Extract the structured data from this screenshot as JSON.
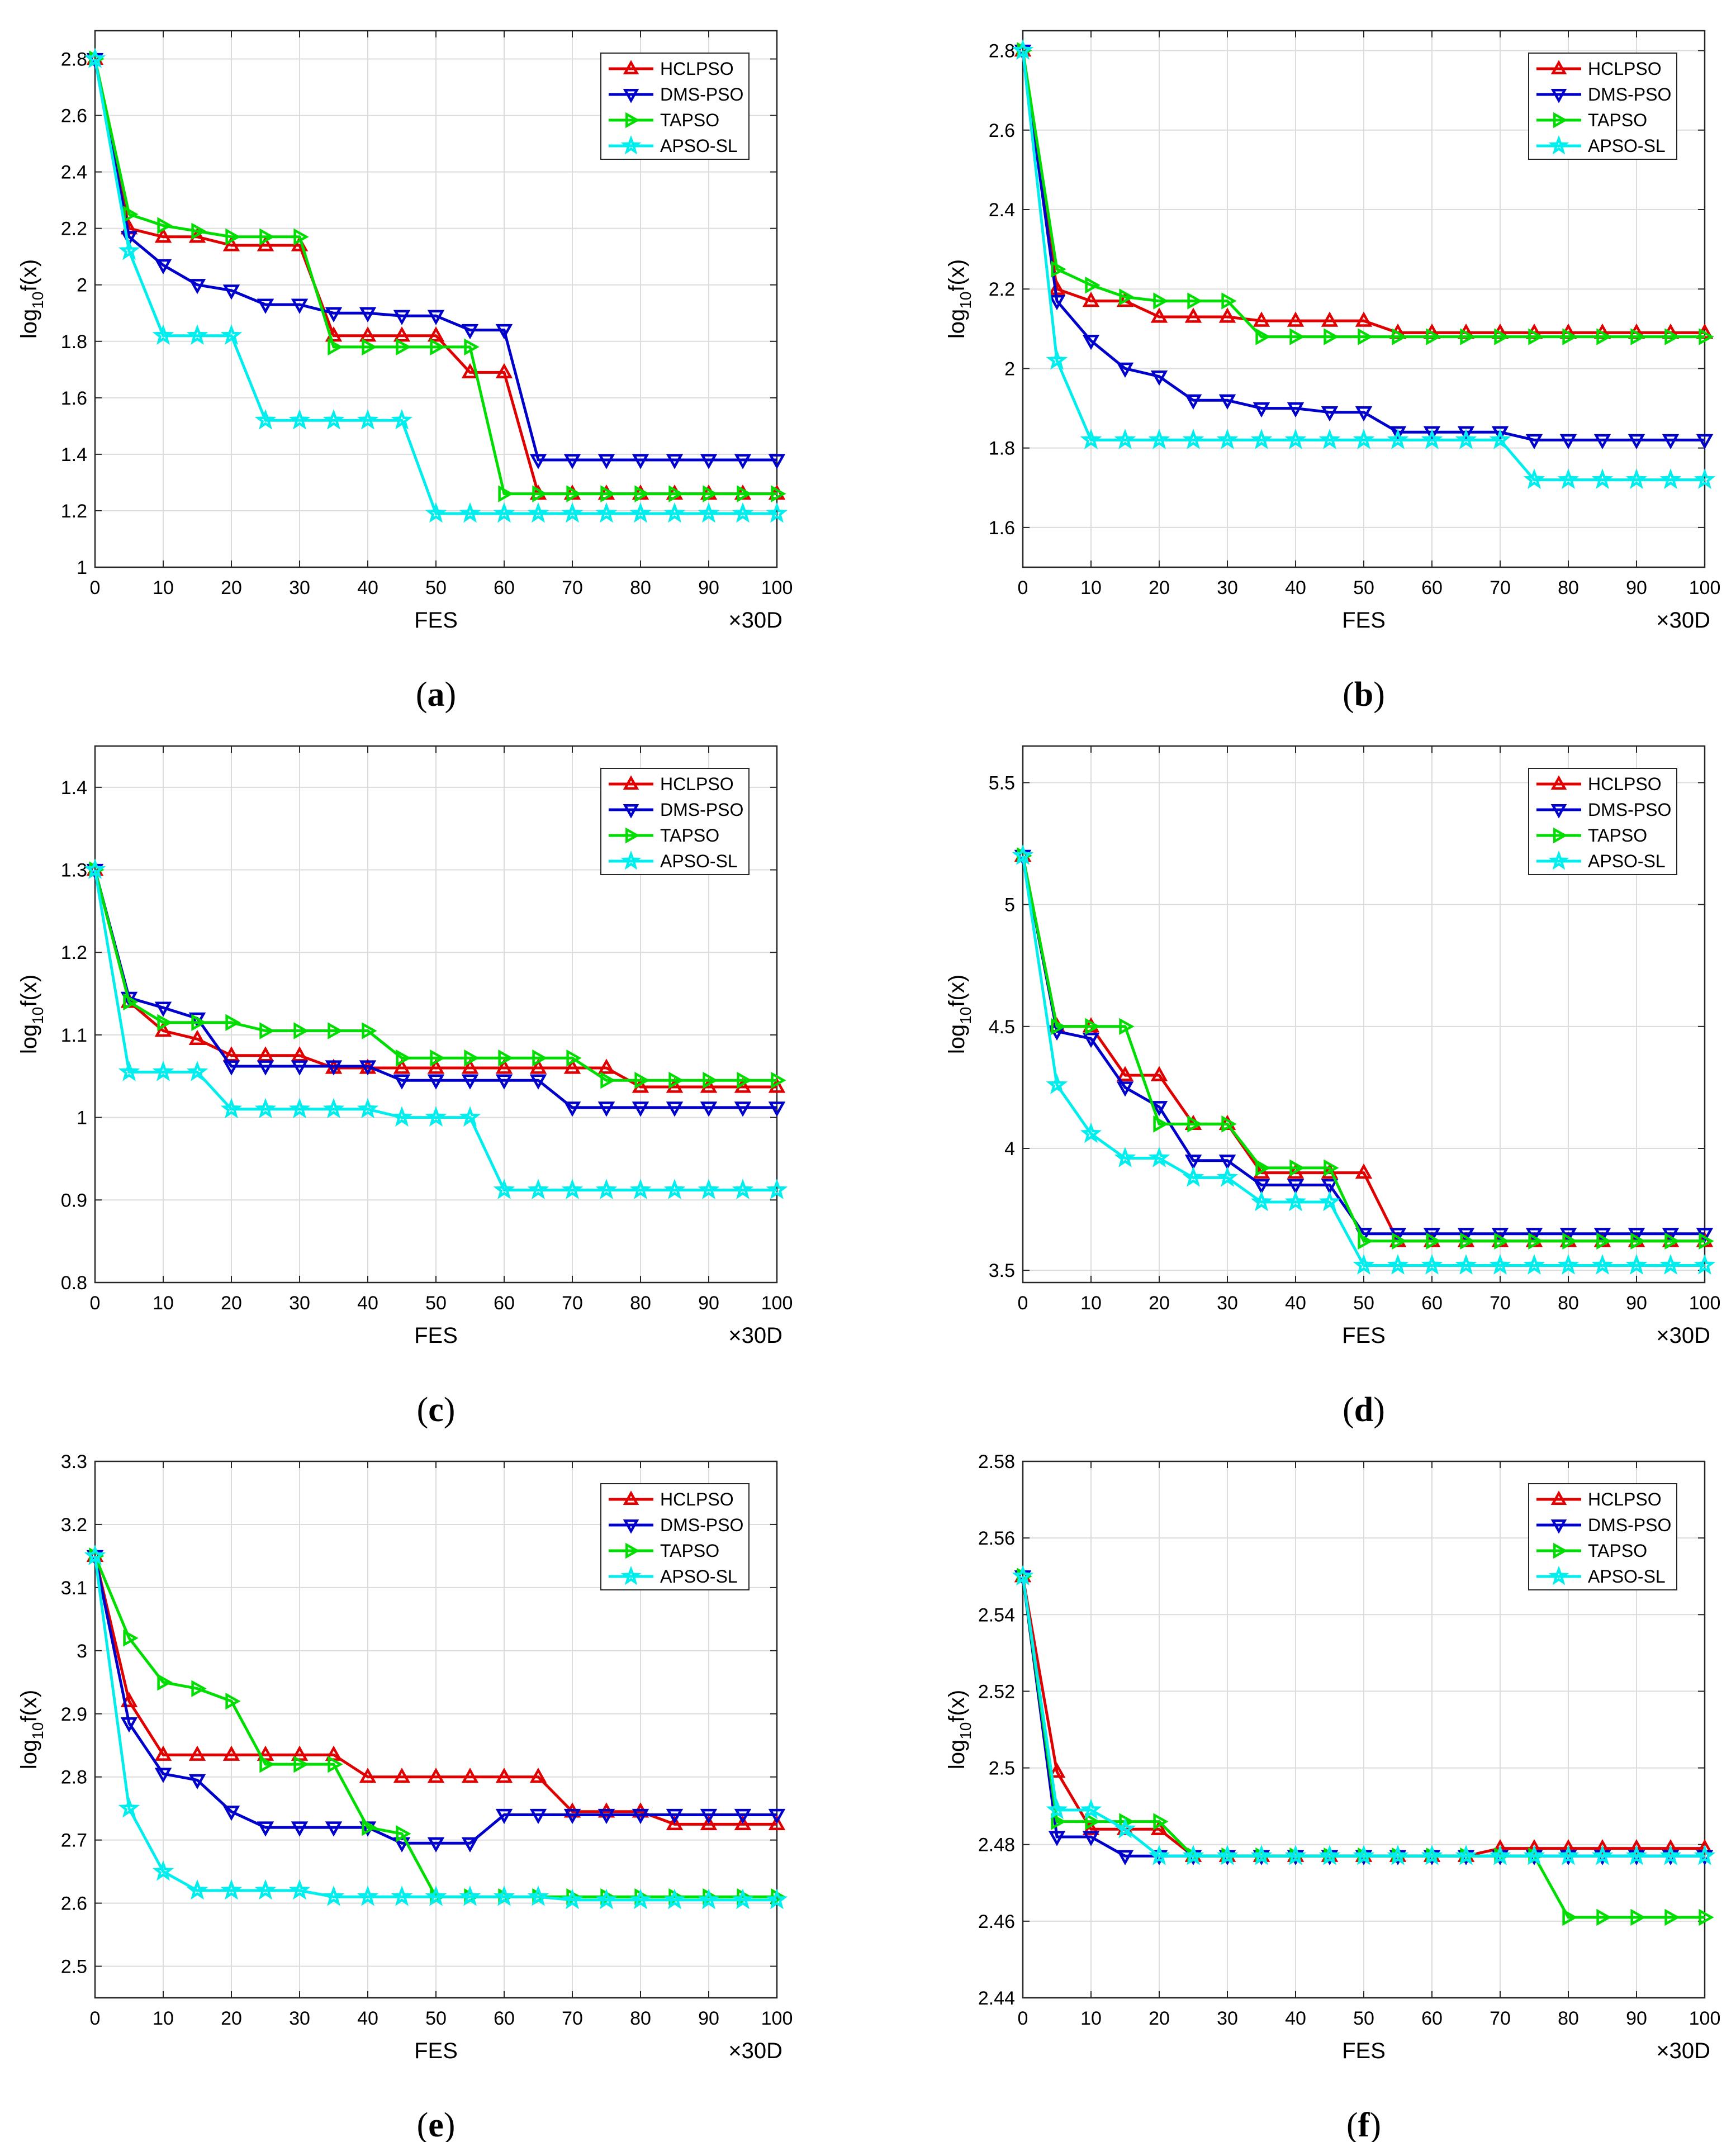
{
  "figure": {
    "x_label": "FES",
    "x_multiplier": "×30D",
    "y_label": {
      "base": "log",
      "sub": "10",
      "rest": "f(x)"
    },
    "colors": {
      "HCLPSO": "#e00000",
      "DMS-PSO": "#0000cc",
      "TAPSO": "#00dd00",
      "APSO-SL": "#00eeee"
    },
    "markers": {
      "HCLPSO": "triangle-up",
      "DMS-PSO": "triangle-down",
      "TAPSO": "triangle-right",
      "APSO-SL": "star"
    },
    "panels": [
      {
        "letter": "a",
        "caption": "(a)"
      },
      {
        "letter": "b",
        "caption": "(b)"
      },
      {
        "letter": "c",
        "caption": "(c)"
      },
      {
        "letter": "d",
        "caption": "(d)"
      },
      {
        "letter": "e",
        "caption": "(e)"
      },
      {
        "letter": "f",
        "caption": "(f)"
      }
    ]
  },
  "chart_data": [
    {
      "type": "line",
      "title": "",
      "xlabel": "FES",
      "ylabel": "log10f(x)",
      "xlim": [
        0,
        100
      ],
      "ylim": [
        1,
        2.9
      ],
      "xticks": [
        "0",
        "10",
        "20",
        "30",
        "40",
        "50",
        "60",
        "70",
        "80",
        "90",
        "100"
      ],
      "yticks": [
        "1",
        "1.2",
        "1.4",
        "1.6",
        "1.8",
        "2",
        "2.2",
        "2.4",
        "2.6",
        "2.8"
      ],
      "ytick_values": [
        1,
        1.2,
        1.4,
        1.6,
        1.8,
        2,
        2.2,
        2.4,
        2.6,
        2.8
      ],
      "legend": "top-right",
      "grid": true,
      "x": [
        0,
        5,
        10,
        15,
        20,
        25,
        30,
        35,
        40,
        45,
        50,
        55,
        60,
        65,
        70,
        75,
        80,
        85,
        90,
        95,
        100
      ],
      "series": [
        {
          "name": "HCLPSO",
          "values": [
            2.8,
            2.2,
            2.17,
            2.17,
            2.14,
            2.14,
            2.14,
            1.82,
            1.82,
            1.82,
            1.82,
            1.69,
            1.69,
            1.26,
            1.26,
            1.26,
            1.26,
            1.26,
            1.26,
            1.26,
            1.26
          ]
        },
        {
          "name": "DMS-PSO",
          "values": [
            2.8,
            2.17,
            2.07,
            2.0,
            1.98,
            1.93,
            1.93,
            1.9,
            1.9,
            1.89,
            1.89,
            1.84,
            1.84,
            1.38,
            1.38,
            1.38,
            1.38,
            1.38,
            1.38,
            1.38,
            1.38
          ]
        },
        {
          "name": "TAPSO",
          "values": [
            2.8,
            2.25,
            2.21,
            2.19,
            2.17,
            2.17,
            2.17,
            1.78,
            1.78,
            1.78,
            1.78,
            1.78,
            1.26,
            1.26,
            1.26,
            1.26,
            1.26,
            1.26,
            1.26,
            1.26,
            1.26
          ]
        },
        {
          "name": "APSO-SL",
          "values": [
            2.8,
            2.12,
            1.82,
            1.82,
            1.82,
            1.52,
            1.52,
            1.52,
            1.52,
            1.52,
            1.19,
            1.19,
            1.19,
            1.19,
            1.19,
            1.19,
            1.19,
            1.19,
            1.19,
            1.19,
            1.19
          ]
        }
      ]
    },
    {
      "type": "line",
      "title": "",
      "xlabel": "FES",
      "ylabel": "log10f(x)",
      "xlim": [
        0,
        100
      ],
      "ylim": [
        1.5,
        2.85
      ],
      "xticks": [
        "0",
        "10",
        "20",
        "30",
        "40",
        "50",
        "60",
        "70",
        "80",
        "90",
        "100"
      ],
      "yticks": [
        "1.6",
        "1.8",
        "2",
        "2.2",
        "2.4",
        "2.6",
        "2.8"
      ],
      "ytick_values": [
        1.6,
        1.8,
        2,
        2.2,
        2.4,
        2.6,
        2.8
      ],
      "legend": "top-right",
      "grid": true,
      "x": [
        0,
        5,
        10,
        15,
        20,
        25,
        30,
        35,
        40,
        45,
        50,
        55,
        60,
        65,
        70,
        75,
        80,
        85,
        90,
        95,
        100
      ],
      "series": [
        {
          "name": "HCLPSO",
          "values": [
            2.8,
            2.2,
            2.17,
            2.17,
            2.13,
            2.13,
            2.13,
            2.12,
            2.12,
            2.12,
            2.12,
            2.09,
            2.09,
            2.09,
            2.09,
            2.09,
            2.09,
            2.09,
            2.09,
            2.09,
            2.09
          ]
        },
        {
          "name": "DMS-PSO",
          "values": [
            2.8,
            2.17,
            2.07,
            2.0,
            1.98,
            1.92,
            1.92,
            1.9,
            1.9,
            1.89,
            1.89,
            1.84,
            1.84,
            1.84,
            1.84,
            1.82,
            1.82,
            1.82,
            1.82,
            1.82,
            1.82
          ]
        },
        {
          "name": "TAPSO",
          "values": [
            2.8,
            2.25,
            2.21,
            2.18,
            2.17,
            2.17,
            2.17,
            2.08,
            2.08,
            2.08,
            2.08,
            2.08,
            2.08,
            2.08,
            2.08,
            2.08,
            2.08,
            2.08,
            2.08,
            2.08,
            2.08
          ]
        },
        {
          "name": "APSO-SL",
          "values": [
            2.8,
            2.02,
            1.82,
            1.82,
            1.82,
            1.82,
            1.82,
            1.82,
            1.82,
            1.82,
            1.82,
            1.82,
            1.82,
            1.82,
            1.82,
            1.72,
            1.72,
            1.72,
            1.72,
            1.72,
            1.72
          ]
        }
      ]
    },
    {
      "type": "line",
      "title": "",
      "xlabel": "FES",
      "ylabel": "log10f(x)",
      "xlim": [
        0,
        100
      ],
      "ylim": [
        0.8,
        1.45
      ],
      "xticks": [
        "0",
        "10",
        "20",
        "30",
        "40",
        "50",
        "60",
        "70",
        "80",
        "90",
        "100"
      ],
      "yticks": [
        "0.8",
        "0.9",
        "1",
        "1.1",
        "1.2",
        "1.3",
        "1.4"
      ],
      "ytick_values": [
        0.8,
        0.9,
        1,
        1.1,
        1.2,
        1.3,
        1.4
      ],
      "legend": "top-right",
      "grid": true,
      "x": [
        0,
        5,
        10,
        15,
        20,
        25,
        30,
        35,
        40,
        45,
        50,
        55,
        60,
        65,
        70,
        75,
        80,
        85,
        90,
        95,
        100
      ],
      "series": [
        {
          "name": "HCLPSO",
          "values": [
            1.3,
            1.14,
            1.105,
            1.095,
            1.075,
            1.075,
            1.075,
            1.06,
            1.06,
            1.06,
            1.06,
            1.06,
            1.06,
            1.06,
            1.06,
            1.06,
            1.037,
            1.037,
            1.037,
            1.037,
            1.037
          ]
        },
        {
          "name": "DMS-PSO",
          "values": [
            1.3,
            1.145,
            1.133,
            1.12,
            1.062,
            1.062,
            1.062,
            1.062,
            1.062,
            1.045,
            1.045,
            1.045,
            1.045,
            1.045,
            1.012,
            1.012,
            1.012,
            1.012,
            1.012,
            1.012,
            1.012
          ]
        },
        {
          "name": "TAPSO",
          "values": [
            1.3,
            1.14,
            1.115,
            1.115,
            1.115,
            1.105,
            1.105,
            1.105,
            1.105,
            1.072,
            1.072,
            1.072,
            1.072,
            1.072,
            1.072,
            1.045,
            1.045,
            1.045,
            1.045,
            1.045,
            1.045
          ]
        },
        {
          "name": "APSO-SL",
          "values": [
            1.3,
            1.055,
            1.055,
            1.055,
            1.01,
            1.01,
            1.01,
            1.01,
            1.01,
            1.0,
            1.0,
            1.0,
            0.912,
            0.912,
            0.912,
            0.912,
            0.912,
            0.912,
            0.912,
            0.912,
            0.912
          ]
        }
      ]
    },
    {
      "type": "line",
      "title": "",
      "xlabel": "FES",
      "ylabel": "log10f(x)",
      "xlim": [
        0,
        100
      ],
      "ylim": [
        3.45,
        5.65
      ],
      "xticks": [
        "0",
        "10",
        "20",
        "30",
        "40",
        "50",
        "60",
        "70",
        "80",
        "90",
        "100"
      ],
      "yticks": [
        "3.5",
        "4",
        "4.5",
        "5",
        "5.5"
      ],
      "ytick_values": [
        3.5,
        4,
        4.5,
        5,
        5.5
      ],
      "legend": "top-right",
      "grid": true,
      "x": [
        0,
        5,
        10,
        15,
        20,
        25,
        30,
        35,
        40,
        45,
        50,
        55,
        60,
        65,
        70,
        75,
        80,
        85,
        90,
        95,
        100
      ],
      "series": [
        {
          "name": "HCLPSO",
          "values": [
            5.2,
            4.5,
            4.5,
            4.3,
            4.3,
            4.1,
            4.1,
            3.9,
            3.9,
            3.9,
            3.9,
            3.62,
            3.62,
            3.62,
            3.62,
            3.62,
            3.62,
            3.62,
            3.62,
            3.62,
            3.62
          ]
        },
        {
          "name": "DMS-PSO",
          "values": [
            5.2,
            4.48,
            4.45,
            4.25,
            4.17,
            3.95,
            3.95,
            3.85,
            3.85,
            3.85,
            3.65,
            3.65,
            3.65,
            3.65,
            3.65,
            3.65,
            3.65,
            3.65,
            3.65,
            3.65,
            3.65
          ]
        },
        {
          "name": "TAPSO",
          "values": [
            5.2,
            4.5,
            4.5,
            4.5,
            4.1,
            4.1,
            4.1,
            3.92,
            3.92,
            3.92,
            3.62,
            3.62,
            3.62,
            3.62,
            3.62,
            3.62,
            3.62,
            3.62,
            3.62,
            3.62,
            3.62
          ]
        },
        {
          "name": "APSO-SL",
          "values": [
            5.2,
            4.26,
            4.06,
            3.96,
            3.96,
            3.88,
            3.88,
            3.78,
            3.78,
            3.78,
            3.52,
            3.52,
            3.52,
            3.52,
            3.52,
            3.52,
            3.52,
            3.52,
            3.52,
            3.52,
            3.52
          ]
        }
      ]
    },
    {
      "type": "line",
      "title": "",
      "xlabel": "FES",
      "ylabel": "log10f(x)",
      "xlim": [
        0,
        100
      ],
      "ylim": [
        2.45,
        3.3
      ],
      "xticks": [
        "0",
        "10",
        "20",
        "30",
        "40",
        "50",
        "60",
        "70",
        "80",
        "90",
        "100"
      ],
      "yticks": [
        "2.5",
        "2.6",
        "2.7",
        "2.8",
        "2.9",
        "3",
        "3.1",
        "3.2",
        "3.3"
      ],
      "ytick_values": [
        2.5,
        2.6,
        2.7,
        2.8,
        2.9,
        3,
        3.1,
        3.2,
        3.3
      ],
      "legend": "top-right",
      "grid": true,
      "x": [
        0,
        5,
        10,
        15,
        20,
        25,
        30,
        35,
        40,
        45,
        50,
        55,
        60,
        65,
        70,
        75,
        80,
        85,
        90,
        95,
        100
      ],
      "series": [
        {
          "name": "HCLPSO",
          "values": [
            3.15,
            2.92,
            2.835,
            2.835,
            2.835,
            2.835,
            2.835,
            2.835,
            2.8,
            2.8,
            2.8,
            2.8,
            2.8,
            2.8,
            2.745,
            2.745,
            2.745,
            2.725,
            2.725,
            2.725,
            2.725
          ]
        },
        {
          "name": "DMS-PSO",
          "values": [
            3.15,
            2.885,
            2.805,
            2.795,
            2.745,
            2.72,
            2.72,
            2.72,
            2.72,
            2.695,
            2.695,
            2.695,
            2.74,
            2.74,
            2.74,
            2.74,
            2.74,
            2.74,
            2.74,
            2.74,
            2.74
          ]
        },
        {
          "name": "TAPSO",
          "values": [
            3.15,
            3.02,
            2.95,
            2.94,
            2.92,
            2.82,
            2.82,
            2.82,
            2.72,
            2.71,
            2.61,
            2.61,
            2.61,
            2.61,
            2.61,
            2.61,
            2.61,
            2.61,
            2.61,
            2.61,
            2.61
          ]
        },
        {
          "name": "APSO-SL",
          "values": [
            3.15,
            2.75,
            2.65,
            2.62,
            2.62,
            2.62,
            2.62,
            2.61,
            2.61,
            2.61,
            2.61,
            2.61,
            2.61,
            2.61,
            2.605,
            2.605,
            2.605,
            2.605,
            2.605,
            2.605,
            2.605
          ]
        }
      ]
    },
    {
      "type": "line",
      "title": "",
      "xlabel": "FES",
      "ylabel": "log10f(x)",
      "xlim": [
        0,
        100
      ],
      "ylim": [
        2.44,
        2.58
      ],
      "xticks": [
        "0",
        "10",
        "20",
        "30",
        "40",
        "50",
        "60",
        "70",
        "80",
        "90",
        "100"
      ],
      "yticks": [
        "2.44",
        "2.46",
        "2.48",
        "2.5",
        "2.52",
        "2.54",
        "2.56",
        "2.58"
      ],
      "ytick_values": [
        2.44,
        2.46,
        2.48,
        2.5,
        2.52,
        2.54,
        2.56,
        2.58
      ],
      "legend": "top-right",
      "grid": true,
      "x": [
        0,
        5,
        10,
        15,
        20,
        25,
        30,
        35,
        40,
        45,
        50,
        55,
        60,
        65,
        70,
        75,
        80,
        85,
        90,
        95,
        100
      ],
      "series": [
        {
          "name": "HCLPSO",
          "values": [
            2.55,
            2.499,
            2.484,
            2.484,
            2.484,
            2.477,
            2.477,
            2.477,
            2.477,
            2.477,
            2.477,
            2.477,
            2.477,
            2.477,
            2.479,
            2.479,
            2.479,
            2.479,
            2.479,
            2.479,
            2.479
          ]
        },
        {
          "name": "DMS-PSO",
          "values": [
            2.55,
            2.482,
            2.482,
            2.477,
            2.477,
            2.477,
            2.477,
            2.477,
            2.477,
            2.477,
            2.477,
            2.477,
            2.477,
            2.477,
            2.477,
            2.477,
            2.477,
            2.477,
            2.477,
            2.477,
            2.477
          ]
        },
        {
          "name": "TAPSO",
          "values": [
            2.55,
            2.486,
            2.486,
            2.486,
            2.486,
            2.477,
            2.477,
            2.477,
            2.477,
            2.477,
            2.477,
            2.477,
            2.477,
            2.477,
            2.477,
            2.477,
            2.461,
            2.461,
            2.461,
            2.461,
            2.461
          ]
        },
        {
          "name": "APSO-SL",
          "values": [
            2.55,
            2.489,
            2.489,
            2.484,
            2.477,
            2.477,
            2.477,
            2.477,
            2.477,
            2.477,
            2.477,
            2.477,
            2.477,
            2.477,
            2.477,
            2.477,
            2.477,
            2.477,
            2.477,
            2.477,
            2.477
          ]
        }
      ]
    }
  ]
}
